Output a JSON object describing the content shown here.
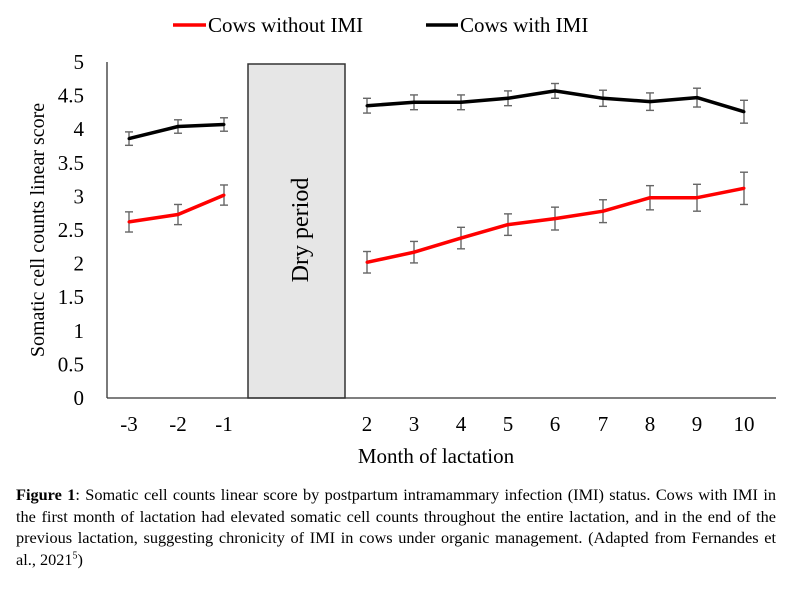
{
  "chart_data": {
    "type": "line",
    "title": "",
    "xlabel": "Month of lactation",
    "ylabel": "Somatic cell counts linear score",
    "ylim": [
      0,
      5
    ],
    "yticks": [
      "0",
      "0.5",
      "1",
      "1.5",
      "2",
      "2.5",
      "3",
      "3.5",
      "4",
      "4.5",
      "5"
    ],
    "grid": false,
    "legend_position": "top-center",
    "segments": [
      {
        "name": "previous-lactation",
        "x": [
          -3,
          -2,
          -1
        ]
      },
      {
        "name": "current-lactation",
        "x": [
          2,
          3,
          4,
          5,
          6,
          7,
          8,
          9,
          10
        ]
      }
    ],
    "x_tick_labels": [
      "-3",
      "-2",
      "-1",
      "2",
      "3",
      "4",
      "5",
      "6",
      "7",
      "8",
      "9",
      "10"
    ],
    "annotation": {
      "text": "Dry period",
      "color": "#e6e6e6"
    },
    "series": [
      {
        "name": "Cows without IMI",
        "color": "#ff0000",
        "x": [
          -3,
          -2,
          -1,
          2,
          3,
          4,
          5,
          6,
          7,
          8,
          9,
          10
        ],
        "values": [
          2.62,
          2.73,
          3.02,
          2.02,
          2.17,
          2.38,
          2.58,
          2.67,
          2.78,
          2.98,
          2.98,
          3.12
        ],
        "error": [
          0.15,
          0.15,
          0.15,
          0.16,
          0.16,
          0.16,
          0.16,
          0.17,
          0.17,
          0.18,
          0.2,
          0.24
        ]
      },
      {
        "name": "Cows with IMI",
        "color": "#000000",
        "x": [
          -3,
          -2,
          -1,
          2,
          3,
          4,
          5,
          6,
          7,
          8,
          9,
          10
        ],
        "values": [
          3.86,
          4.04,
          4.07,
          4.35,
          4.4,
          4.4,
          4.46,
          4.57,
          4.46,
          4.41,
          4.47,
          4.26
        ],
        "error": [
          0.1,
          0.1,
          0.1,
          0.11,
          0.11,
          0.11,
          0.11,
          0.11,
          0.12,
          0.13,
          0.14,
          0.17
        ]
      }
    ]
  },
  "caption": {
    "label": "Figure 1",
    "text": ": Somatic cell counts linear score by postpartum intramammary infection (IMI) status. Cows with IMI in the first month of lactation had elevated somatic cell counts throughout the entire lactation, and in the end of the previous lactation, suggesting chronicity of IMI in cows under organic management. (Adapted from Fernandes et al., 2021",
    "ref": "5",
    "close": ")"
  }
}
